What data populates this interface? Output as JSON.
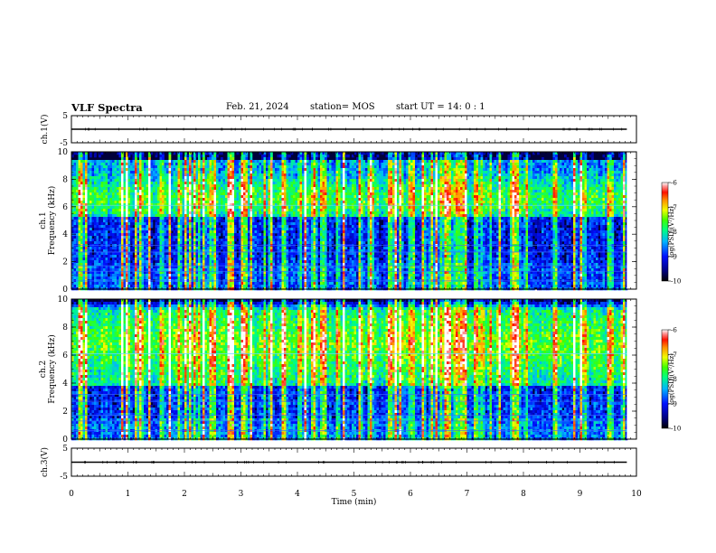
{
  "header": {
    "title": "VLF Spectra",
    "date": "Feb. 21, 2024",
    "station": "station= MOS",
    "start": "start UT = 14: 0 : 1"
  },
  "chart_data": {
    "type": "heatmap",
    "xlabel": "Time (min)",
    "xlim": [
      0,
      10
    ],
    "xticks": [
      "0",
      "1",
      "2",
      "3",
      "4",
      "5",
      "6",
      "7",
      "8",
      "9",
      "10"
    ],
    "data_end_min": 9.83,
    "panels": [
      {
        "id": "ch1-waveform",
        "type": "line",
        "ylabel": "ch.1(V)",
        "yticks": [
          "5",
          "-5"
        ],
        "ylim": [
          -5,
          5
        ],
        "level": 0
      },
      {
        "id": "ch1-spectrogram",
        "type": "heatmap",
        "ylabel_top": "ch.1",
        "ylabel": "Frequency (kHz)",
        "ylim": [
          0,
          10
        ],
        "yticks": [
          "0",
          "2",
          "4",
          "6",
          "8",
          "10"
        ],
        "colorbar_label": "log(PSD)(V²/Hz)",
        "colorbar_ticks": [
          "-6",
          "-7",
          "-8",
          "-9",
          "-10"
        ],
        "clim": [
          -10,
          -6
        ]
      },
      {
        "id": "ch2-spectrogram",
        "type": "heatmap",
        "ylabel_top": "ch.2",
        "ylabel": "Frequency (kHz)",
        "ylim": [
          0,
          10
        ],
        "yticks": [
          "0",
          "2",
          "4",
          "6",
          "8",
          "10"
        ],
        "colorbar_label": "log(PSD)(V²/Hz)",
        "colorbar_ticks": [
          "-6",
          "-7",
          "-8",
          "-9",
          "-10"
        ],
        "clim": [
          -10,
          -6
        ]
      },
      {
        "id": "ch3-waveform",
        "type": "line",
        "ylabel": "ch.3(V)",
        "yticks": [
          "5",
          "-5"
        ],
        "ylim": [
          -5,
          5
        ],
        "level": 0
      }
    ]
  }
}
